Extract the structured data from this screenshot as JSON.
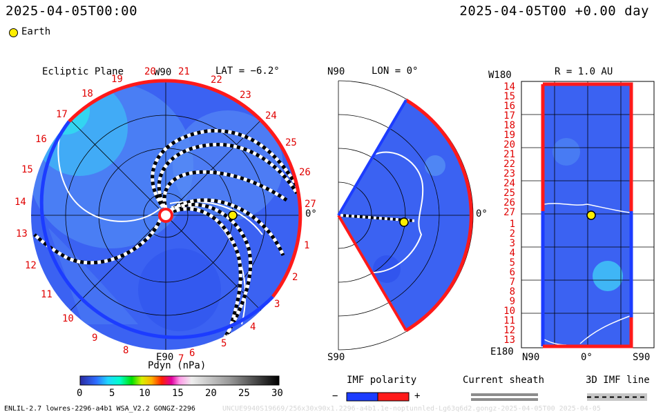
{
  "header": {
    "datetime_left": "2025-04-05T00:00",
    "datetime_right": "2025-04-05T00 +0.00 day",
    "legend_earth": "Earth"
  },
  "colors": {
    "background_blue": "#3b62f2",
    "boundary_red": "#ff1a1a",
    "boundary_blue": "#1c3cff",
    "earth_yellow": "#ffee00"
  },
  "ecliptic": {
    "title": "Ecliptic Plane",
    "lat_label": "LAT = −6.2°",
    "w90": "W90",
    "e90": "E90",
    "deg0": "0°",
    "sector_numbers": [
      "20",
      "21",
      "22",
      "23",
      "24",
      "25",
      "26",
      "27",
      "1",
      "2",
      "3",
      "4",
      "5",
      "6",
      "7",
      "8",
      "9",
      "10",
      "11",
      "12",
      "13",
      "14",
      "15",
      "16",
      "17",
      "18",
      "19"
    ]
  },
  "meridional": {
    "n90": "N90",
    "s90": "S90",
    "lon_label": "LON = 0°",
    "deg0": "0°"
  },
  "radial": {
    "w180": "W180",
    "e180": "E180",
    "r_label": "R = 1.0 AU",
    "row_labels": [
      "14",
      "15",
      "16",
      "17",
      "18",
      "19",
      "20",
      "21",
      "22",
      "23",
      "24",
      "25",
      "26",
      "27",
      "1",
      "2",
      "3",
      "4",
      "5",
      "6",
      "7",
      "8",
      "9",
      "10",
      "11",
      "12",
      "13"
    ],
    "x_labels": [
      "N90",
      "0°",
      "S90"
    ]
  },
  "colorbar": {
    "title": "Pdyn (nPa)",
    "ticks": [
      "0",
      "5",
      "10",
      "15",
      "20",
      "25",
      "30"
    ]
  },
  "imf_polarity": {
    "title": "IMF polarity",
    "minus": "−",
    "plus": "+"
  },
  "current_sheath": {
    "title": "Current sheath"
  },
  "imf_line": {
    "title": "3D IMF line"
  },
  "footer": {
    "model_info": "ENLIL-2.7 lowres-2296-a4b1 WSA_V2.2 GONGZ-2296",
    "run_info": "UNCUE9940S19669/256x30x90x1.2296-a4b1.1e-noptunnled-Lg63q6d2.gongz-2025-04-05T00  2025-04-05"
  }
}
